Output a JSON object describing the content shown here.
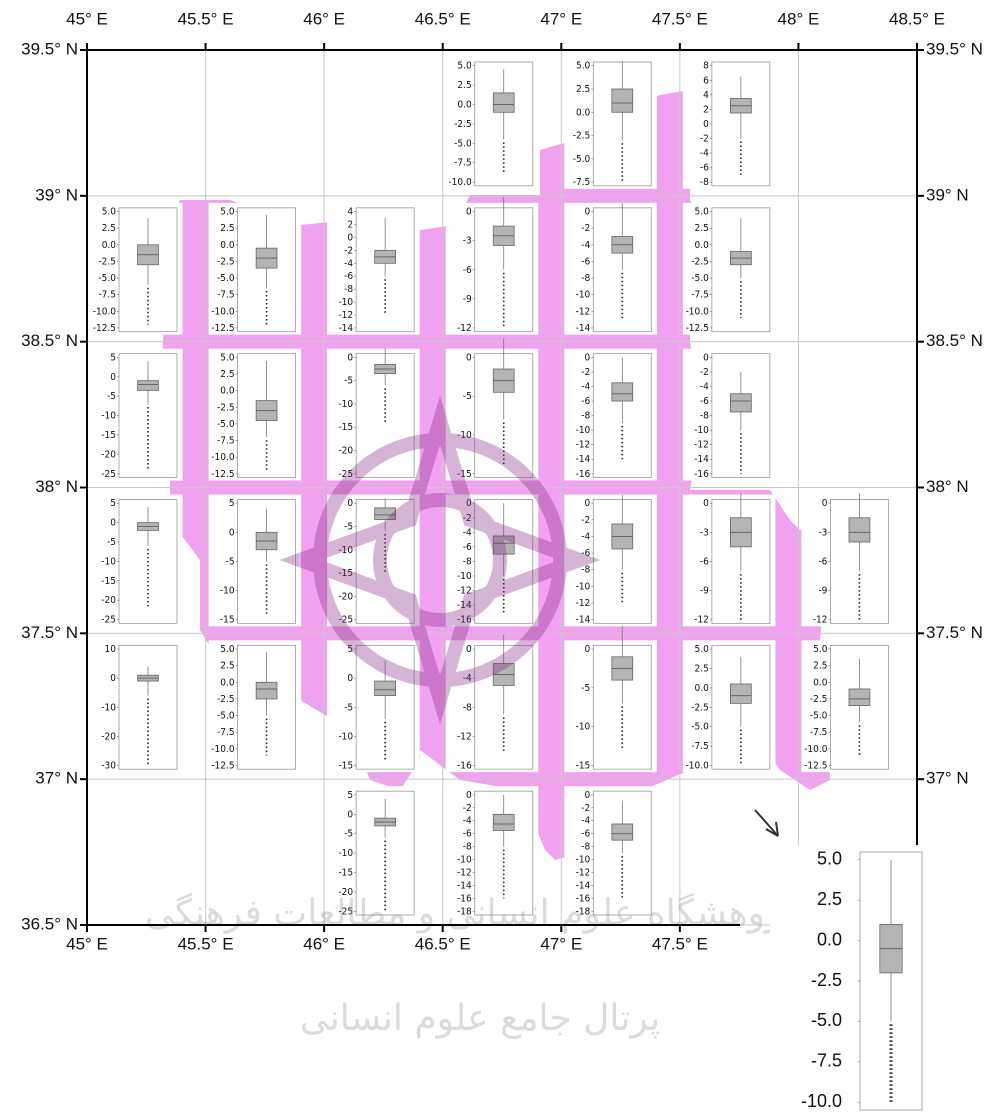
{
  "map": {
    "lonlim": [
      45,
      48.5
    ],
    "latlim": [
      36.5,
      39.5
    ],
    "region_color": "#f0a2f0",
    "lon_ticks": [
      {
        "value": 45,
        "label": "45° E"
      },
      {
        "value": 45.5,
        "label": "45.5° E"
      },
      {
        "value": 46,
        "label": "46° E"
      },
      {
        "value": 46.5,
        "label": "46.5° E"
      },
      {
        "value": 47,
        "label": "47° E"
      },
      {
        "value": 47.5,
        "label": "47.5° E"
      },
      {
        "value": 48,
        "label": "48° E"
      },
      {
        "value": 48.5,
        "label": "48.5° E"
      }
    ],
    "lat_ticks": [
      {
        "value": 39.5,
        "label": "39.5° N"
      },
      {
        "value": 39,
        "label": "39° N"
      },
      {
        "value": 38.5,
        "label": "38.5° N"
      },
      {
        "value": 38,
        "label": "38° N"
      },
      {
        "value": 37.5,
        "label": "37.5° N"
      },
      {
        "value": 37,
        "label": "37° N"
      },
      {
        "value": 36.5,
        "label": "36.5° N"
      }
    ],
    "panels": [
      {
        "ylim": [
          -10,
          5
        ],
        "yticks": [
          {
            "value": 5,
            "label": "5.0"
          },
          2.5,
          {
            "value": 0,
            "label": "0.0"
          },
          -2.5,
          {
            "value": -5,
            "label": "-5.0"
          },
          -7.5,
          {
            "value": -10,
            "label": "-10.0"
          }
        ],
        "whisker_high": 4.5,
        "q3": 1.5,
        "median": 0,
        "q1": -1,
        "whisker_low": -4.5,
        "min": -9
      },
      {
        "ylim": [
          -7.5,
          5
        ],
        "yticks": [
          {
            "value": 5,
            "label": "5.0"
          },
          2.5,
          {
            "value": 0,
            "label": "0.0"
          },
          -2.5,
          {
            "value": -5,
            "label": "-5.0"
          },
          -7.5
        ],
        "whisker_high": 5.5,
        "q3": 2.5,
        "median": 1,
        "q1": 0,
        "whisker_low": -3,
        "min": -7.5
      },
      {
        "ylim": [
          -8,
          8
        ],
        "yticks": [
          8,
          6,
          4,
          2,
          0,
          -2,
          -4,
          -6,
          -8
        ],
        "whisker_high": 6.5,
        "q3": 3.5,
        "median": 2.5,
        "q1": 1.5,
        "whisker_low": -2,
        "min": -7
      },
      {
        "ylim": [
          -12.5,
          5
        ],
        "yticks": [
          {
            "value": 5,
            "label": "5.0"
          },
          2.5,
          {
            "value": 0,
            "label": "0.0"
          },
          -2.5,
          {
            "value": -5,
            "label": "-5.0"
          },
          -7.5,
          {
            "value": -10,
            "label": "-10.0"
          },
          -12.5
        ],
        "whisker_high": 4,
        "q3": 0,
        "median": -1.5,
        "q1": -3,
        "whisker_low": -6,
        "min": -12
      },
      {
        "ylim": [
          -12.5,
          5
        ],
        "yticks": [
          {
            "value": 5,
            "label": "5.0"
          },
          2.5,
          {
            "value": 0,
            "label": "0.0"
          },
          -2.5,
          {
            "value": -5,
            "label": "-5.0"
          },
          -7.5,
          {
            "value": -10,
            "label": "-10.0"
          },
          -12.5
        ],
        "whisker_high": 4.5,
        "q3": -0.5,
        "median": -2,
        "q1": -3.5,
        "whisker_low": -6.5,
        "min": -12
      },
      {
        "ylim": [
          -14,
          4
        ],
        "yticks": [
          4,
          2,
          0,
          -2,
          -4,
          -6,
          -8,
          -10,
          -12,
          -14
        ],
        "whisker_high": 3,
        "q3": -2,
        "median": -3,
        "q1": -4,
        "whisker_low": -6,
        "min": -12
      },
      {
        "ylim": [
          -12,
          0
        ],
        "yticks": [
          0,
          -3,
          -6,
          -9,
          -12
        ],
        "whisker_high": 1.5,
        "q3": -1.5,
        "median": -2.5,
        "q1": -3.5,
        "whisker_low": -6,
        "min": -12
      },
      {
        "ylim": [
          -14,
          0
        ],
        "yticks": [
          0,
          -2,
          -4,
          -6,
          -8,
          -10,
          -12,
          -14
        ],
        "whisker_high": 1,
        "q3": -3,
        "median": -4,
        "q1": -5,
        "whisker_low": -7,
        "min": -13
      },
      {
        "ylim": [
          -12.5,
          5
        ],
        "yticks": [
          {
            "value": 5,
            "label": "5.0"
          },
          2.5,
          {
            "value": 0,
            "label": "0.0"
          },
          -2.5,
          {
            "value": -5,
            "label": "-5.0"
          },
          -7.5,
          {
            "value": -10,
            "label": "-10.0"
          },
          -12.5
        ],
        "whisker_high": 4,
        "q3": -1,
        "median": -2,
        "q1": -3,
        "whisker_low": -5,
        "min": -11
      },
      {
        "ylim": [
          -25,
          5
        ],
        "yticks": [
          5,
          0,
          -5,
          -10,
          -15,
          -20,
          -25
        ],
        "whisker_high": 4,
        "q3": -1,
        "median": -2,
        "q1": -3.5,
        "whisker_low": -7,
        "min": -24
      },
      {
        "ylim": [
          -12.5,
          5
        ],
        "yticks": [
          {
            "value": 5,
            "label": "5.0"
          },
          2.5,
          {
            "value": 0,
            "label": "0.0"
          },
          -2.5,
          {
            "value": -5,
            "label": "-5.0"
          },
          -7.5,
          {
            "value": -10,
            "label": "-10.0"
          },
          -12.5
        ],
        "whisker_high": 4.5,
        "q3": -1.5,
        "median": -3,
        "q1": -4.5,
        "whisker_low": -7,
        "min": -12
      },
      {
        "ylim": [
          -25,
          0
        ],
        "yticks": [
          0,
          -5,
          -10,
          -15,
          -20,
          -25
        ],
        "whisker_high": 2,
        "q3": -1.5,
        "median": -2.5,
        "q1": -3.5,
        "whisker_low": -6,
        "min": -14
      },
      {
        "ylim": [
          -15,
          0
        ],
        "yticks": [
          0,
          -5,
          -10,
          -15
        ],
        "whisker_high": 2.5,
        "q3": -1.5,
        "median": -3,
        "q1": -4.5,
        "whisker_low": -8,
        "min": -14
      },
      {
        "ylim": [
          -16,
          0
        ],
        "yticks": [
          0,
          -2,
          -4,
          -6,
          -8,
          -10,
          -12,
          -14,
          -16
        ],
        "whisker_high": 0,
        "q3": -3.5,
        "median": -5,
        "q1": -6,
        "whisker_low": -9,
        "min": -14
      },
      {
        "ylim": [
          -16,
          0
        ],
        "yticks": [
          0,
          -2,
          -4,
          -6,
          -8,
          -10,
          -12,
          -14,
          -16
        ],
        "whisker_high": -2,
        "q3": -5,
        "median": -6,
        "q1": -7.5,
        "whisker_low": -10,
        "min": -16
      },
      {
        "ylim": [
          -25,
          5
        ],
        "yticks": [
          5,
          0,
          -5,
          -10,
          -15,
          -20,
          -25
        ],
        "whisker_high": 4,
        "q3": 0,
        "median": -1,
        "q1": -2,
        "whisker_low": -6,
        "min": -22
      },
      {
        "ylim": [
          -15,
          5
        ],
        "yticks": [
          5,
          0,
          -5,
          -10,
          -15
        ],
        "whisker_high": 4,
        "q3": 0,
        "median": -1.5,
        "q1": -3,
        "whisker_low": -5,
        "min": -14
      },
      {
        "ylim": [
          -25,
          0
        ],
        "yticks": [
          0,
          -5,
          -10,
          -15,
          -20,
          -25
        ],
        "whisker_high": 1,
        "q3": -1,
        "median": -2.5,
        "q1": -3.5,
        "whisker_low": -6,
        "min": -15
      },
      {
        "ylim": [
          -16,
          0
        ],
        "yticks": [
          0,
          -2,
          -4,
          -6,
          -8,
          -10,
          -12,
          -14,
          -16
        ],
        "whisker_high": 0,
        "q3": -4.5,
        "median": -5.5,
        "q1": -7,
        "whisker_low": -10,
        "min": -15
      },
      {
        "ylim": [
          -14,
          0
        ],
        "yticks": [
          0,
          -2,
          -4,
          -6,
          -8,
          -10,
          -12,
          -14
        ],
        "whisker_high": 1,
        "q3": -2.5,
        "median": -4,
        "q1": -5.5,
        "whisker_low": -8,
        "min": -12
      },
      {
        "ylim": [
          -12,
          0
        ],
        "yticks": [
          0,
          -3,
          -6,
          -9,
          -12
        ],
        "whisker_high": 1,
        "q3": -1.5,
        "median": -3,
        "q1": -4.5,
        "whisker_low": -7,
        "min": -12
      },
      {
        "ylim": [
          -12,
          0
        ],
        "yticks": [
          0,
          -3,
          -6,
          -9,
          -12
        ],
        "whisker_high": 1,
        "q3": -1.5,
        "median": -3,
        "q1": -4,
        "whisker_low": -7,
        "min": -12
      },
      {
        "ylim": [
          -30,
          10
        ],
        "yticks": [
          10,
          0,
          -10,
          -20,
          -30
        ],
        "whisker_high": 4,
        "q3": 1,
        "median": 0,
        "q1": -1,
        "whisker_low": -6,
        "min": -30
      },
      {
        "ylim": [
          -12.5,
          5
        ],
        "yticks": [
          {
            "value": 5,
            "label": "5.0"
          },
          2.5,
          {
            "value": 0,
            "label": "0.0"
          },
          -2.5,
          {
            "value": -5,
            "label": "-5.0"
          },
          -7.5,
          {
            "value": -10,
            "label": "-10.0"
          },
          -12.5
        ],
        "whisker_high": 4.5,
        "q3": 0,
        "median": -1,
        "q1": -2.5,
        "whisker_low": -5,
        "min": -11
      },
      {
        "ylim": [
          -15,
          5
        ],
        "yticks": [
          5,
          0,
          -5,
          -10,
          -15
        ],
        "whisker_high": 3,
        "q3": -0.5,
        "median": -2,
        "q1": -3,
        "whisker_low": -7,
        "min": -14
      },
      {
        "ylim": [
          -16,
          0
        ],
        "yticks": [
          0,
          -4,
          -8,
          -12,
          -16
        ],
        "whisker_high": 2,
        "q3": -2,
        "median": -3.5,
        "q1": -5,
        "whisker_low": -9,
        "min": -14
      },
      {
        "ylim": [
          -15,
          0
        ],
        "yticks": [
          0,
          -5,
          -10,
          -15
        ],
        "whisker_high": 3,
        "q3": -1,
        "median": -2.5,
        "q1": -4,
        "whisker_low": -7,
        "min": -13
      },
      {
        "ylim": [
          -10,
          5
        ],
        "yticks": [
          {
            "value": 5,
            "label": "5.0"
          },
          2.5,
          {
            "value": 0,
            "label": "0.0"
          },
          -2.5,
          {
            "value": -5,
            "label": "-5.0"
          },
          -7.5,
          {
            "value": -10,
            "label": "-10.0"
          }
        ],
        "whisker_high": 4,
        "q3": 0.5,
        "median": -1,
        "q1": -2,
        "whisker_low": -5,
        "min": -10
      },
      {
        "ylim": [
          -12.5,
          5
        ],
        "yticks": [
          {
            "value": 5,
            "label": "5.0"
          },
          2.5,
          {
            "value": 0,
            "label": "0.0"
          },
          -2.5,
          {
            "value": -5,
            "label": "-5.0"
          },
          -7.5,
          {
            "value": -10,
            "label": "-10.0"
          },
          -12.5
        ],
        "whisker_high": 3.5,
        "q3": -1,
        "median": -2.5,
        "q1": -3.5,
        "whisker_low": -6,
        "min": -11
      },
      {
        "ylim": [
          -25,
          5
        ],
        "yticks": [
          5,
          0,
          -5,
          -10,
          -15,
          -20,
          -25
        ],
        "whisker_high": 4,
        "q3": -1,
        "median": -2,
        "q1": -3,
        "whisker_low": -6,
        "min": -25
      },
      {
        "ylim": [
          -18,
          0
        ],
        "yticks": [
          0,
          -2,
          -4,
          -6,
          -8,
          -10,
          -12,
          -14,
          -16,
          -18
        ],
        "whisker_high": 0,
        "q3": -3,
        "median": -4.5,
        "q1": -5.5,
        "whisker_low": -8,
        "min": -16
      },
      {
        "ylim": [
          -18,
          0
        ],
        "yticks": [
          0,
          -2,
          -4,
          -6,
          -8,
          -10,
          -12,
          -14,
          -16,
          -18
        ],
        "whisker_high": -1,
        "q3": -4.5,
        "median": -6,
        "q1": -7,
        "whisker_low": -9,
        "min": -16
      }
    ],
    "inset": {
      "ylim": [
        -10,
        5
      ],
      "yticks": [
        {
          "value": 5,
          "label": "5.0"
        },
        2.5,
        {
          "value": 0,
          "label": "0.0"
        },
        -2.5,
        {
          "value": -5,
          "label": "-5.0"
        },
        -7.5,
        {
          "value": -10,
          "label": "-10.0"
        }
      ],
      "whisker_high": 5,
      "q3": 1,
      "median": -0.5,
      "q1": -2,
      "whisker_low": -5,
      "min": -10
    },
    "watermark": {
      "line1": "پژوهشگاه علوم انسانی و مطالعات فرهنگی",
      "line2": "پرتال جامع علوم انسانی"
    }
  }
}
